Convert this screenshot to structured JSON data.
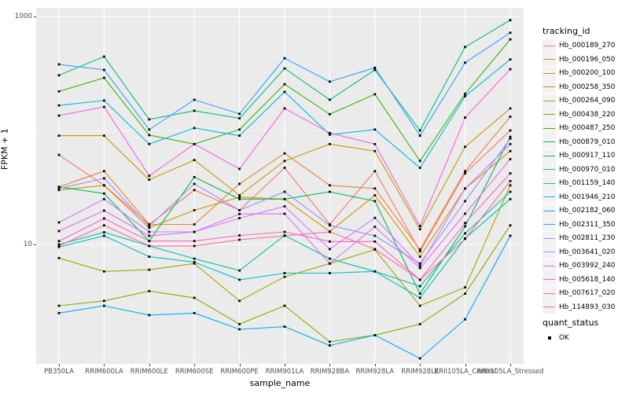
{
  "chart_data": {
    "type": "line",
    "title": "",
    "xlabel": "sample_name",
    "ylabel": "FPKM + 1",
    "yscale": "log10",
    "ylim": [
      0.9,
      1200
    ],
    "yticks": [
      10,
      1000
    ],
    "ytick_labels": [
      "10",
      "1000"
    ],
    "minor_gridlines": [
      1,
      100
    ],
    "grid": true,
    "legend_position": "right",
    "legend_title": "tracking_id",
    "quant_legend": {
      "title": "quant_status",
      "items": [
        "OK"
      ]
    },
    "point_color": "#000000",
    "panel_background": "#EBEBEB",
    "gridline_color": "#FFFFFF",
    "categories": [
      "PB350LA",
      "RRIM600LA",
      "RRIM600LE",
      "RRIM600SE",
      "RRIM600PE",
      "RRIM901LA",
      "RRIM928BA",
      "RRIM928LA",
      "RRIM928LE",
      "RRII105LA_Control",
      "RRII105LA_Stressed"
    ],
    "series": [
      {
        "name": "Hb_000189_270",
        "color": "#F8766D",
        "values": [
          61,
          33,
          15,
          30,
          20,
          47,
          15,
          44,
          8.7,
          42,
          100
        ]
      },
      {
        "name": "Hb_000196_050",
        "color": "#EA8331",
        "values": [
          32,
          44,
          15,
          15,
          34,
          63,
          33,
          31,
          9,
          44,
          132
        ]
      },
      {
        "name": "Hb_000200_100",
        "color": "#D89000",
        "values": [
          30,
          33,
          14,
          20,
          26,
          25,
          13,
          27,
          7.8,
          31,
          66
        ]
      },
      {
        "name": "Hb_000258_350",
        "color": "#C09B00",
        "values": [
          90,
          90,
          37,
          55,
          27,
          54,
          76,
          66,
          13.6,
          72,
          156
        ]
      },
      {
        "name": "Hb_000264_090",
        "color": "#A3A500",
        "values": [
          7.6,
          5.8,
          6.0,
          6.8,
          3.2,
          5.2,
          6.8,
          9,
          2.9,
          4.2,
          33
        ]
      },
      {
        "name": "Hb_000438_220",
        "color": "#7CAE00",
        "values": [
          2.9,
          3.2,
          3.9,
          3.4,
          2.0,
          2.9,
          1.4,
          1.6,
          2.0,
          3.7,
          14.7
        ]
      },
      {
        "name": "Hb_000487_250",
        "color": "#39B600",
        "values": [
          220,
          290,
          91,
          76,
          102,
          255,
          139,
          208,
          54,
          210,
          630
        ]
      },
      {
        "name": "Hb_000879_010",
        "color": "#00BB4E",
        "values": [
          32,
          28,
          10.7,
          39,
          25,
          25,
          29,
          24,
          3.7,
          14.4,
          88
        ]
      },
      {
        "name": "Hb_000917_110",
        "color": "#00BF7D",
        "values": [
          305,
          445,
          125,
          149,
          128,
          350,
          186,
          340,
          100,
          540,
          930
        ]
      },
      {
        "name": "Hb_000970_010",
        "color": "#00C1A3",
        "values": [
          10,
          12.8,
          9.7,
          7.5,
          5.9,
          12,
          7.5,
          5.8,
          4.3,
          12.5,
          29
        ]
      },
      {
        "name": "Hb_001159_140",
        "color": "#00BFC4",
        "values": [
          9.5,
          11.9,
          7.8,
          7.0,
          4.9,
          5.6,
          5.6,
          5.8,
          3.4,
          11.3,
          25
        ]
      },
      {
        "name": "Hb_001946_210",
        "color": "#00B8E5",
        "values": [
          166,
          183,
          76,
          105,
          90,
          218,
          92,
          102,
          47,
          200,
          420
        ]
      },
      {
        "name": "Hb_002182_060",
        "color": "#00ACFC",
        "values": [
          2.5,
          2.9,
          2.4,
          2.5,
          1.8,
          1.9,
          1.3,
          1.6,
          1.0,
          2.2,
          11.9
        ]
      },
      {
        "name": "Hb_002311_350",
        "color": "#35A2FF",
        "values": [
          380,
          340,
          102,
          186,
          140,
          430,
          268,
          355,
          90,
          394,
          720
        ]
      },
      {
        "name": "Hb_002811_230",
        "color": "#9590FF",
        "values": [
          31,
          38,
          14.5,
          34,
          20,
          29,
          14.7,
          11.9,
          6.8,
          24,
          85
        ]
      },
      {
        "name": "Hb_003641_020",
        "color": "#C77CFF",
        "values": [
          15.6,
          25,
          12.9,
          12.9,
          17,
          21.6,
          9.1,
          17.1,
          6.5,
          31,
          76
        ]
      },
      {
        "name": "Hb_003992_240",
        "color": "#E76BF3",
        "values": [
          13.1,
          19.8,
          11.9,
          12.9,
          18.5,
          18.6,
          6.8,
          14.3,
          6.2,
          18.6,
          56
        ]
      },
      {
        "name": "Hb_005618_140",
        "color": "#FA62DB",
        "values": [
          135,
          161,
          40,
          76,
          46,
          156,
          95,
          76,
          14.5,
          130,
          345
        ]
      },
      {
        "name": "Hb_007617_020",
        "color": "#FF61C9",
        "values": [
          10.7,
          16.9,
          10.7,
          10.7,
          12,
          12.9,
          10.6,
          10.6,
          4.9,
          15.4,
          42
        ]
      },
      {
        "name": "Hb_114893_030",
        "color": "#FF6A98",
        "values": [
          9.7,
          14.7,
          9.7,
          9.7,
          11,
          11.9,
          12.9,
          9.1,
          4.9,
          11.2,
          36
        ]
      }
    ]
  }
}
